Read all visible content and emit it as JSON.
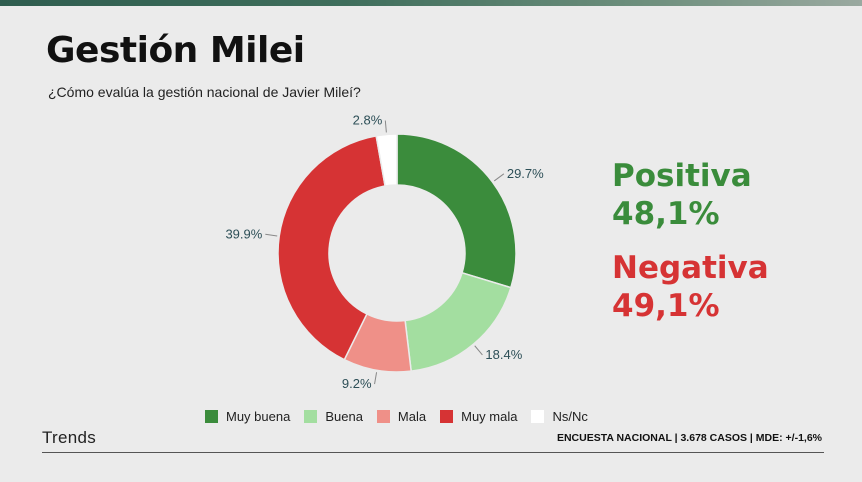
{
  "title": "Gestión Milei",
  "subtitle": "¿Cómo evalúa la gestión nacional de Javier Mileí?",
  "summary": {
    "positive_label": "Positiva",
    "positive_value": "48,1%",
    "negative_label": "Negativa",
    "negative_value": "49,1%"
  },
  "brand": "Trends",
  "footer_note": "ENCUESTA NACIONAL | 3.678 CASOS | MDE: +/-1,6%",
  "colors": {
    "positive": "#3a8c3b",
    "negative": "#d63334"
  },
  "chart_data": {
    "type": "pie",
    "donut": true,
    "categories": [
      "Muy buena",
      "Buena",
      "Mala",
      "Muy mala",
      "Ns/Nc"
    ],
    "values": [
      29.7,
      18.4,
      9.2,
      39.9,
      2.8
    ],
    "labels": [
      "29.7%",
      "18.4%",
      "9.2%",
      "39.9%",
      "2.8%"
    ],
    "colors": [
      "#3b8c3c",
      "#a3dea0",
      "#ef9088",
      "#d63334",
      "#ffffff"
    ],
    "legend_position": "bottom"
  }
}
